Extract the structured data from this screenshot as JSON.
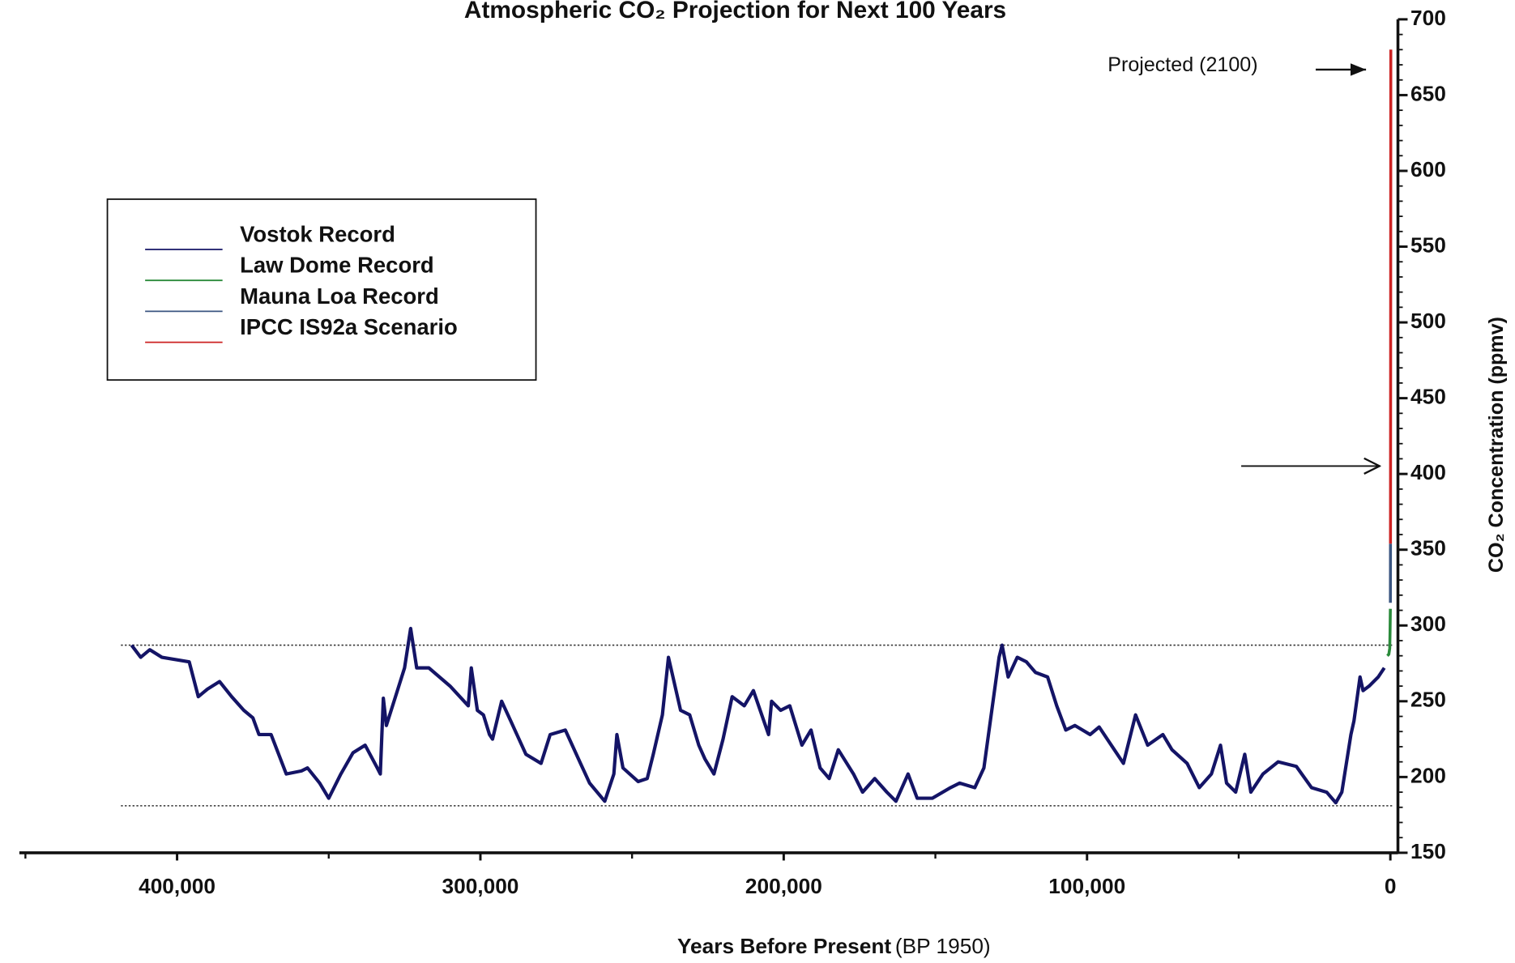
{
  "chart_data": {
    "type": "line",
    "title": "Atmospheric CO₂ Projection for Next 100 Years",
    "xlabel": "Years Before Present",
    "xlabel_note": "(BP 1950)",
    "ylabel": "CO₂ Concentration (ppmv)",
    "annotation": "Projected (2100)",
    "xlim": [
      452000,
      -2500
    ],
    "xticks": [
      {
        "value": 400000,
        "label": "400,000"
      },
      {
        "value": 300000,
        "label": "300,000"
      },
      {
        "value": 200000,
        "label": "200,000"
      },
      {
        "value": 100000,
        "label": "100,000"
      },
      0
    ],
    "xminor_ticks": [
      450000,
      350000,
      250000,
      150000,
      50000
    ],
    "ylim": [
      150,
      700
    ],
    "yticks": [
      150,
      200,
      250,
      300,
      350,
      400,
      450,
      500,
      550,
      600,
      650,
      700
    ],
    "yminor_ticks": [
      160,
      170,
      180,
      190,
      210,
      220,
      230,
      240,
      260,
      270,
      280,
      290,
      310,
      320,
      330,
      340,
      360,
      370,
      380,
      390,
      410,
      420,
      430,
      440,
      460,
      470,
      480,
      490,
      510,
      520,
      530,
      540,
      560,
      570,
      580,
      590,
      610,
      620,
      630,
      640,
      660,
      670,
      680,
      690
    ],
    "reference_lines": [
      287,
      181
    ],
    "legend": "upper left",
    "series": [
      {
        "name": "Vostok Record",
        "color": "#141466",
        "x": [
          415000,
          412000,
          409000,
          405000,
          396000,
          393000,
          390000,
          386000,
          382000,
          378000,
          375000,
          373000,
          369000,
          364000,
          359000,
          357000,
          353000,
          350000,
          346000,
          342000,
          338000,
          334000,
          333000,
          332000,
          331000,
          328000,
          325000,
          323000,
          321000,
          317000,
          310000,
          304000,
          303000,
          301000,
          299000,
          297000,
          296000,
          293000,
          290000,
          285000,
          280000,
          277000,
          272000,
          267000,
          264000,
          259000,
          256000,
          255000,
          253000,
          248000,
          245000,
          243000,
          240000,
          238000,
          234000,
          231000,
          228000,
          226000,
          223000,
          220000,
          217000,
          213000,
          210000,
          205000,
          204000,
          201000,
          198000,
          194000,
          191000,
          188000,
          185000,
          182000,
          177000,
          174000,
          170000,
          166000,
          163000,
          159000,
          156000,
          151000,
          145000,
          142000,
          137000,
          134000,
          129000,
          128000,
          126000,
          123000,
          120000,
          117000,
          113000,
          110000,
          107000,
          104000,
          99000,
          96000,
          91000,
          88000,
          84000,
          80000,
          75000,
          72000,
          67000,
          63000,
          59000,
          56000,
          54000,
          51000,
          48000,
          46000,
          42000,
          37000,
          31000,
          26000,
          21000,
          18000,
          16000,
          13000,
          12000,
          10000,
          9000,
          7000,
          4000,
          2000
        ],
        "values": [
          287,
          279,
          284,
          279,
          276,
          253,
          258,
          263,
          253,
          244,
          239,
          228,
          228,
          202,
          204,
          206,
          196,
          186,
          202,
          216,
          221,
          206,
          202,
          252,
          234,
          253,
          272,
          298,
          272,
          272,
          260,
          247,
          272,
          244,
          241,
          228,
          225,
          250,
          237,
          215,
          209,
          228,
          231,
          209,
          196,
          184,
          202,
          228,
          206,
          197,
          199,
          215,
          241,
          279,
          244,
          241,
          221,
          212,
          202,
          225,
          253,
          247,
          257,
          228,
          250,
          244,
          247,
          221,
          231,
          206,
          199,
          218,
          202,
          190,
          199,
          190,
          184,
          202,
          186,
          186,
          193,
          196,
          193,
          206,
          279,
          287,
          266,
          279,
          276,
          269,
          266,
          247,
          231,
          234,
          228,
          233,
          218,
          209,
          241,
          221,
          228,
          218,
          209,
          193,
          202,
          221,
          196,
          190,
          215,
          190,
          202,
          210,
          207,
          193,
          190,
          183,
          190,
          228,
          237,
          266,
          257,
          260,
          266,
          272
        ]
      },
      {
        "name": "Law Dome Record",
        "color": "#2a8a3a",
        "x": [
          1000,
          500,
          200,
          100,
          0
        ],
        "values": [
          280,
          281,
          285,
          296,
          311
        ]
      },
      {
        "name": "Mauna Loa Record",
        "color": "#3a5580",
        "x": [
          -8,
          -20,
          -30,
          -40
        ],
        "values": [
          315,
          326,
          338,
          354
        ]
      },
      {
        "name": "IPCC IS92a Scenario",
        "color": "#cc2222",
        "x": [
          -40,
          -60,
          -80,
          -100,
          -120,
          -150
        ],
        "values": [
          354,
          395,
          440,
          500,
          570,
          680
        ]
      }
    ]
  }
}
